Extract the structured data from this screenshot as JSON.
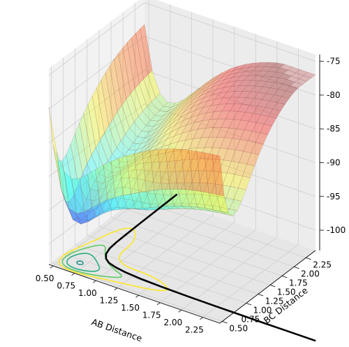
{
  "chart_data": {
    "type": "surface3d",
    "title": "",
    "xlabel": "AB Distance",
    "ylabel": "BC Distance",
    "zlabel": "",
    "xlim": [
      0.45,
      2.45
    ],
    "ylim": [
      0.45,
      2.45
    ],
    "zlim": [
      -103,
      -74
    ],
    "x_ticks": [
      "0.50",
      "0.75",
      "1.00",
      "1.25",
      "1.50",
      "1.75",
      "2.00",
      "2.25"
    ],
    "y_ticks": [
      "0.50",
      "0.75",
      "1.00",
      "1.25",
      "1.50",
      "1.75",
      "2.00",
      "2.25"
    ],
    "z_ticks": [
      "-75",
      "-80",
      "-85",
      "-90",
      "-95",
      "-100"
    ],
    "grid": true,
    "colormap": "jet",
    "surface_alpha": 0.35,
    "energy_cap": -77,
    "contour_levels": [
      -101,
      -99,
      -97,
      -95,
      -93,
      -91
    ],
    "contour_colors": [
      "#440154",
      "#3b528b",
      "#21918c",
      "#27ad81",
      "#5ec962",
      "#fde725"
    ],
    "trajectory_color": "#000000",
    "trajectory": [
      [
        0.74,
        2.6
      ],
      [
        0.745,
        2.2
      ],
      [
        0.75,
        1.8
      ],
      [
        0.755,
        1.5
      ],
      [
        0.76,
        1.3
      ],
      [
        0.77,
        1.15
      ],
      [
        0.8,
        1.02
      ],
      [
        0.85,
        0.93
      ],
      [
        0.92,
        0.87
      ],
      [
        1.02,
        0.83
      ],
      [
        1.15,
        0.8
      ],
      [
        1.35,
        0.775
      ],
      [
        1.6,
        0.76
      ],
      [
        1.9,
        0.75
      ],
      [
        2.2,
        0.745
      ],
      [
        2.5,
        0.742
      ],
      [
        2.8,
        0.74
      ],
      [
        3.1,
        0.74
      ],
      [
        3.4,
        0.74
      ]
    ]
  }
}
